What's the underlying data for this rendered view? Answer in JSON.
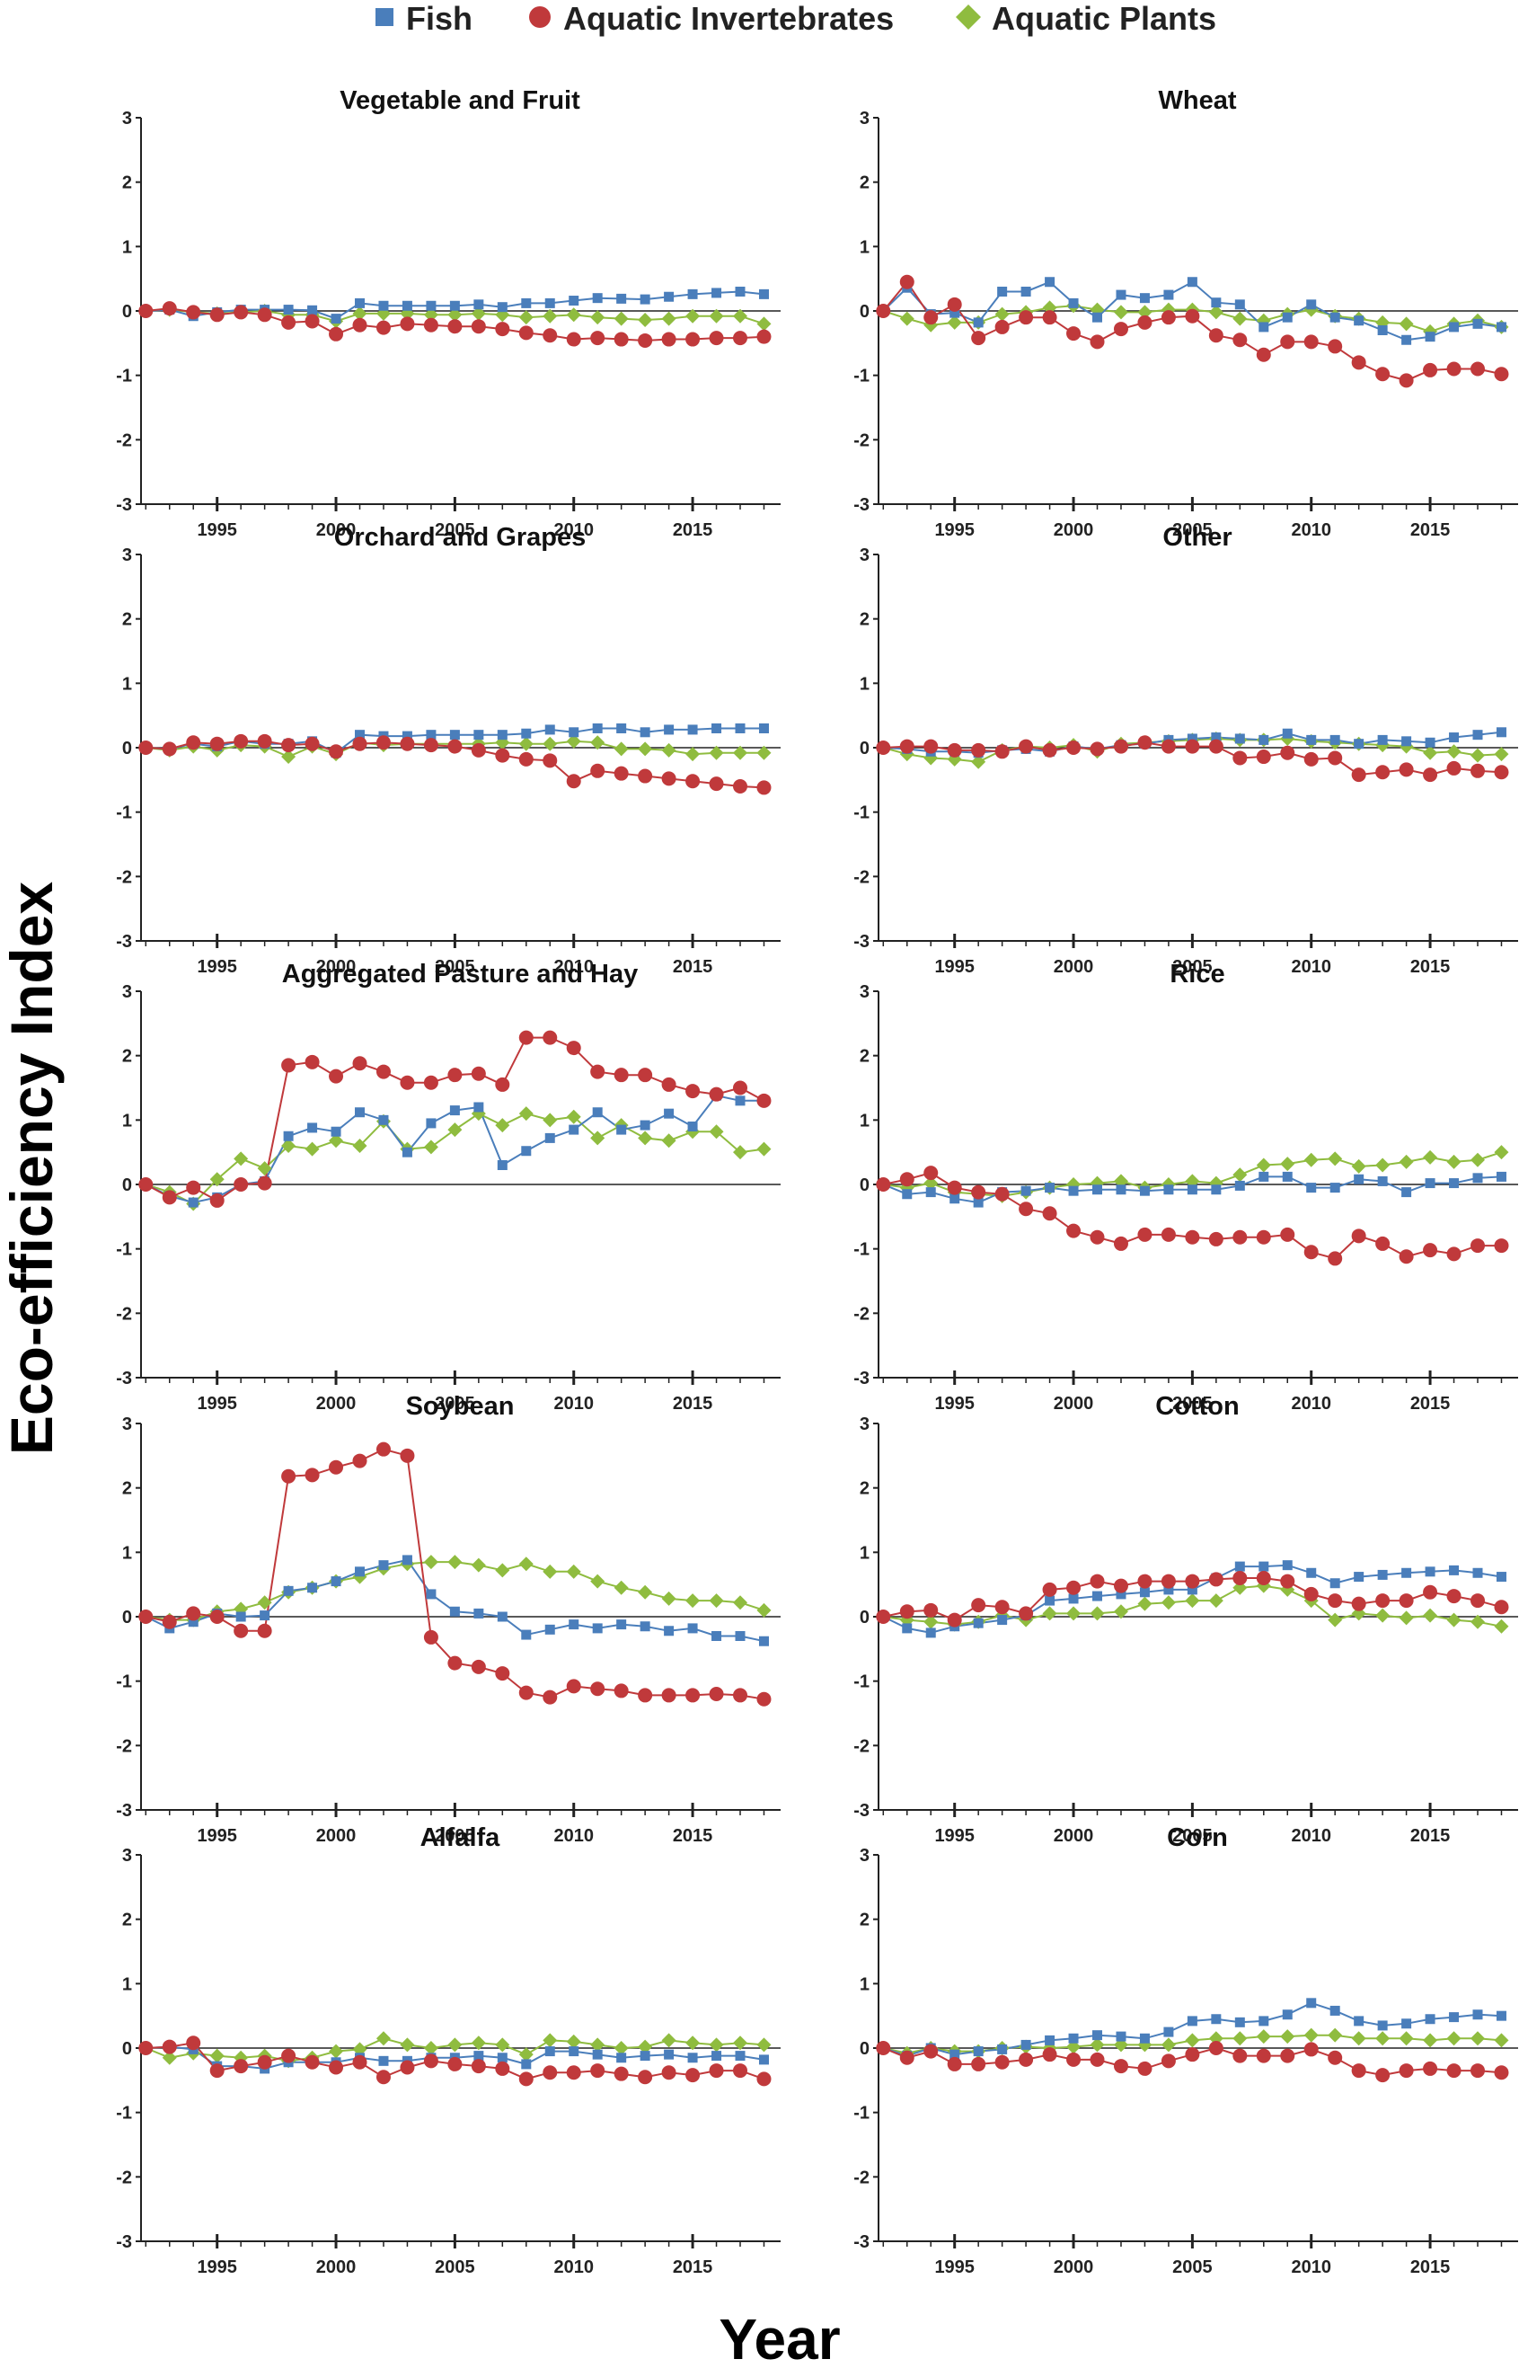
{
  "colors": {
    "fish": "#4a7ebb",
    "invertebrates": "#c0393b",
    "plants": "#8fbc3f"
  },
  "legend": {
    "fish": "Fish",
    "invertebrates": "Aquatic Invertebrates",
    "plants": "Aquatic Plants"
  },
  "axes": {
    "ylabel": "Eco-efficiency Index",
    "xlabel": "Year",
    "y_ticks": [
      "3",
      "2",
      "1",
      "0",
      "-1",
      "-2",
      "-3"
    ],
    "x_ticks": [
      "1995",
      "2000",
      "2005",
      "2010",
      "2015"
    ]
  },
  "chart_data": {
    "type": "line",
    "x": [
      1992,
      1993,
      1994,
      1995,
      1996,
      1997,
      1998,
      1999,
      2000,
      2001,
      2002,
      2003,
      2004,
      2005,
      2006,
      2007,
      2008,
      2009,
      2010,
      2011,
      2012,
      2013,
      2014,
      2015,
      2016,
      2017,
      2018
    ],
    "xlim": [
      1991.8,
      2018.7
    ],
    "ylim": [
      -3,
      3
    ],
    "panels": [
      {
        "title": "Vegetable and Fruit",
        "fish": [
          0,
          0.02,
          -0.08,
          -0.02,
          0.02,
          0.02,
          0.02,
          0.01,
          -0.12,
          0.12,
          0.08,
          0.08,
          0.08,
          0.08,
          0.1,
          0.06,
          0.12,
          0.12,
          0.16,
          0.2,
          0.19,
          0.18,
          0.22,
          0.26,
          0.28,
          0.3,
          0.26
        ],
        "invertebrates": [
          0,
          0.04,
          -0.02,
          -0.06,
          -0.02,
          -0.06,
          -0.18,
          -0.16,
          -0.36,
          -0.22,
          -0.26,
          -0.2,
          -0.22,
          -0.24,
          -0.24,
          -0.28,
          -0.34,
          -0.38,
          -0.44,
          -0.42,
          -0.44,
          -0.46,
          -0.44,
          -0.44,
          -0.42,
          -0.42,
          -0.4
        ],
        "plants": [
          0,
          0.02,
          -0.02,
          -0.04,
          -0.02,
          0,
          -0.06,
          -0.06,
          -0.16,
          -0.04,
          -0.04,
          -0.04,
          -0.06,
          -0.06,
          -0.04,
          -0.06,
          -0.1,
          -0.08,
          -0.06,
          -0.1,
          -0.12,
          -0.14,
          -0.12,
          -0.08,
          -0.08,
          -0.08,
          -0.2
        ]
      },
      {
        "title": "Wheat",
        "fish": [
          0,
          0.36,
          -0.05,
          -0.03,
          -0.18,
          0.3,
          0.3,
          0.45,
          0.12,
          -0.1,
          0.25,
          0.2,
          0.25,
          0.45,
          0.13,
          0.1,
          -0.25,
          -0.1,
          0.1,
          -0.1,
          -0.15,
          -0.3,
          -0.45,
          -0.4,
          -0.25,
          -0.2,
          -0.25
        ],
        "invertebrates": [
          0,
          0.45,
          -0.1,
          0.1,
          -0.42,
          -0.25,
          -0.1,
          -0.1,
          -0.35,
          -0.48,
          -0.28,
          -0.18,
          -0.1,
          -0.08,
          -0.38,
          -0.45,
          -0.68,
          -0.48,
          -0.48,
          -0.55,
          -0.8,
          -0.98,
          -1.08,
          -0.92,
          -0.9,
          -0.9,
          -0.98
        ],
        "plants": [
          0,
          -0.12,
          -0.22,
          -0.18,
          -0.18,
          -0.05,
          -0.02,
          0.05,
          0.08,
          0.02,
          -0.02,
          -0.02,
          0.02,
          0.02,
          -0.02,
          -0.12,
          -0.15,
          -0.05,
          0.02,
          -0.08,
          -0.12,
          -0.18,
          -0.2,
          -0.32,
          -0.2,
          -0.15,
          -0.25
        ]
      },
      {
        "title": "Orchard and Grapes",
        "fish": [
          0,
          -0.02,
          0.06,
          0.02,
          0.1,
          0.06,
          0.06,
          0.1,
          -0.08,
          0.2,
          0.18,
          0.18,
          0.2,
          0.2,
          0.2,
          0.2,
          0.22,
          0.28,
          0.24,
          0.3,
          0.3,
          0.24,
          0.28,
          0.28,
          0.3,
          0.3,
          0.3
        ],
        "invertebrates": [
          0,
          -0.02,
          0.08,
          0.06,
          0.1,
          0.1,
          0.04,
          0.06,
          -0.06,
          0.06,
          0.08,
          0.06,
          0.04,
          0.02,
          -0.04,
          -0.12,
          -0.18,
          -0.2,
          -0.52,
          -0.36,
          -0.4,
          -0.44,
          -0.48,
          -0.52,
          -0.56,
          -0.6,
          -0.62
        ],
        "plants": [
          0,
          -0.04,
          0.02,
          -0.04,
          0.04,
          0.02,
          -0.14,
          0.02,
          -0.1,
          0.08,
          0.04,
          0.06,
          0.06,
          0.06,
          0.06,
          0.08,
          0.06,
          0.06,
          0.1,
          0.08,
          -0.02,
          -0.02,
          -0.04,
          -0.1,
          -0.08,
          -0.08,
          -0.08
        ]
      },
      {
        "title": "Other",
        "fish": [
          0,
          -0.02,
          -0.06,
          -0.06,
          -0.08,
          -0.04,
          -0.02,
          -0.06,
          0.02,
          -0.02,
          0.04,
          0.06,
          0.12,
          0.14,
          0.16,
          0.14,
          0.12,
          0.22,
          0.12,
          0.12,
          0.06,
          0.12,
          0.1,
          0.08,
          0.16,
          0.2,
          0.24
        ],
        "invertebrates": [
          0,
          0.02,
          0.02,
          -0.04,
          -0.04,
          -0.06,
          0.02,
          -0.04,
          0,
          -0.02,
          0.02,
          0.08,
          0.02,
          0.02,
          0.02,
          -0.16,
          -0.14,
          -0.08,
          -0.18,
          -0.16,
          -0.42,
          -0.38,
          -0.34,
          -0.42,
          -0.32,
          -0.36,
          -0.38
        ],
        "plants": [
          0,
          -0.1,
          -0.16,
          -0.18,
          -0.22,
          -0.04,
          0.02,
          0,
          0.04,
          -0.06,
          0.06,
          0.08,
          0.1,
          0.12,
          0.14,
          0.12,
          0.12,
          0.14,
          0.1,
          0.08,
          0.06,
          0.04,
          0.02,
          -0.08,
          -0.06,
          -0.12,
          -0.1
        ]
      },
      {
        "title": "Aggregated Pasture and Hay",
        "fish": [
          0,
          -0.18,
          -0.28,
          -0.2,
          0,
          0.05,
          0.75,
          0.88,
          0.82,
          1.12,
          1.0,
          0.5,
          0.95,
          1.15,
          1.2,
          0.3,
          0.52,
          0.72,
          0.85,
          1.12,
          0.85,
          0.92,
          1.1,
          0.9,
          1.38,
          1.3,
          1.3
        ],
        "invertebrates": [
          0,
          -0.2,
          -0.05,
          -0.25,
          0,
          0.02,
          1.85,
          1.9,
          1.68,
          1.88,
          1.75,
          1.58,
          1.58,
          1.7,
          1.72,
          1.55,
          2.28,
          2.28,
          2.12,
          1.75,
          1.7,
          1.7,
          1.55,
          1.45,
          1.4,
          1.5,
          1.3
        ],
        "plants": [
          0,
          -0.12,
          -0.3,
          0.08,
          0.4,
          0.25,
          0.6,
          0.55,
          0.68,
          0.6,
          0.98,
          0.55,
          0.58,
          0.85,
          1.1,
          0.92,
          1.1,
          1.0,
          1.05,
          0.72,
          0.92,
          0.72,
          0.68,
          0.82,
          0.82,
          0.5,
          0.55
        ]
      },
      {
        "title": "Rice",
        "fish": [
          0,
          -0.15,
          -0.12,
          -0.22,
          -0.28,
          -0.12,
          -0.1,
          -0.05,
          -0.1,
          -0.08,
          -0.08,
          -0.1,
          -0.08,
          -0.08,
          -0.08,
          -0.02,
          0.12,
          0.12,
          -0.05,
          -0.05,
          0.08,
          0.05,
          -0.12,
          0.02,
          0.02,
          0.1,
          0.12
        ],
        "invertebrates": [
          0,
          0.08,
          0.18,
          -0.05,
          -0.12,
          -0.15,
          -0.38,
          -0.45,
          -0.72,
          -0.82,
          -0.92,
          -0.78,
          -0.78,
          -0.82,
          -0.85,
          -0.82,
          -0.82,
          -0.78,
          -1.05,
          -1.15,
          -0.8,
          -0.92,
          -1.12,
          -1.02,
          -1.08,
          -0.95,
          -0.95
        ],
        "plants": [
          0,
          -0.05,
          0.02,
          -0.12,
          -0.15,
          -0.18,
          -0.12,
          -0.05,
          0,
          0.02,
          0.05,
          -0.05,
          0,
          0.05,
          0.02,
          0.15,
          0.3,
          0.32,
          0.38,
          0.4,
          0.28,
          0.3,
          0.35,
          0.42,
          0.35,
          0.38,
          0.5
        ]
      },
      {
        "title": "Soybean",
        "fish": [
          0,
          -0.18,
          -0.08,
          0.05,
          0,
          0.02,
          0.4,
          0.45,
          0.55,
          0.7,
          0.8,
          0.88,
          0.35,
          0.08,
          0.05,
          0,
          -0.28,
          -0.2,
          -0.12,
          -0.18,
          -0.12,
          -0.15,
          -0.22,
          -0.18,
          -0.3,
          -0.3,
          -0.38
        ],
        "invertebrates": [
          0,
          -0.08,
          0.05,
          0,
          -0.22,
          -0.22,
          2.18,
          2.2,
          2.32,
          2.42,
          2.6,
          2.5,
          -0.32,
          -0.72,
          -0.78,
          -0.88,
          -1.18,
          -1.25,
          -1.08,
          -1.12,
          -1.15,
          -1.22,
          -1.22,
          -1.22,
          -1.2,
          -1.22,
          -1.28
        ],
        "plants": [
          0,
          -0.05,
          -0.05,
          0.08,
          0.12,
          0.22,
          0.38,
          0.45,
          0.55,
          0.62,
          0.75,
          0.82,
          0.85,
          0.85,
          0.8,
          0.72,
          0.82,
          0.7,
          0.7,
          0.55,
          0.45,
          0.38,
          0.28,
          0.25,
          0.25,
          0.22,
          0.1
        ]
      },
      {
        "title": "Cotton",
        "fish": [
          0,
          -0.18,
          -0.25,
          -0.15,
          -0.1,
          -0.05,
          0.02,
          0.25,
          0.28,
          0.32,
          0.35,
          0.38,
          0.42,
          0.42,
          0.6,
          0.78,
          0.78,
          0.8,
          0.68,
          0.52,
          0.62,
          0.65,
          0.68,
          0.7,
          0.72,
          0.68,
          0.62
        ],
        "invertebrates": [
          0,
          0.08,
          0.1,
          -0.05,
          0.18,
          0.15,
          0.05,
          0.42,
          0.45,
          0.55,
          0.48,
          0.55,
          0.55,
          0.55,
          0.58,
          0.6,
          0.6,
          0.55,
          0.35,
          0.25,
          0.2,
          0.25,
          0.25,
          0.38,
          0.32,
          0.25,
          0.15
        ],
        "plants": [
          0,
          -0.05,
          -0.08,
          -0.12,
          -0.08,
          0.02,
          -0.05,
          0.05,
          0.05,
          0.05,
          0.08,
          0.2,
          0.22,
          0.25,
          0.25,
          0.45,
          0.48,
          0.42,
          0.25,
          -0.05,
          0.05,
          0.02,
          -0.02,
          0.02,
          -0.05,
          -0.08,
          -0.15
        ]
      },
      {
        "title": "Alfalfa",
        "fish": [
          0,
          0.02,
          -0.02,
          -0.28,
          -0.28,
          -0.32,
          -0.22,
          -0.22,
          -0.22,
          -0.15,
          -0.2,
          -0.2,
          -0.15,
          -0.15,
          -0.12,
          -0.15,
          -0.25,
          -0.05,
          -0.05,
          -0.1,
          -0.15,
          -0.12,
          -0.1,
          -0.15,
          -0.12,
          -0.12,
          -0.18
        ],
        "invertebrates": [
          0,
          0.02,
          0.08,
          -0.35,
          -0.28,
          -0.22,
          -0.12,
          -0.22,
          -0.3,
          -0.22,
          -0.45,
          -0.3,
          -0.2,
          -0.25,
          -0.28,
          -0.32,
          -0.48,
          -0.38,
          -0.38,
          -0.35,
          -0.4,
          -0.45,
          -0.38,
          -0.42,
          -0.35,
          -0.35,
          -0.48
        ],
        "plants": [
          0,
          -0.15,
          -0.08,
          -0.12,
          -0.15,
          -0.12,
          -0.2,
          -0.15,
          -0.05,
          -0.02,
          0.15,
          0.05,
          0,
          0.05,
          0.08,
          0.05,
          -0.1,
          0.12,
          0.1,
          0.05,
          0,
          0.02,
          0.12,
          0.08,
          0.05,
          0.08,
          0.05
        ]
      },
      {
        "title": "Corn",
        "fish": [
          0,
          -0.12,
          0,
          -0.1,
          -0.05,
          -0.02,
          0.05,
          0.12,
          0.15,
          0.2,
          0.18,
          0.15,
          0.25,
          0.42,
          0.45,
          0.4,
          0.42,
          0.52,
          0.7,
          0.58,
          0.42,
          0.35,
          0.38,
          0.45,
          0.48,
          0.52,
          0.5
        ],
        "invertebrates": [
          0,
          -0.15,
          -0.05,
          -0.25,
          -0.25,
          -0.22,
          -0.18,
          -0.1,
          -0.18,
          -0.18,
          -0.28,
          -0.32,
          -0.2,
          -0.1,
          0,
          -0.12,
          -0.12,
          -0.12,
          -0.02,
          -0.15,
          -0.35,
          -0.42,
          -0.35,
          -0.32,
          -0.35,
          -0.35,
          -0.38
        ],
        "plants": [
          0,
          -0.08,
          0,
          -0.05,
          -0.05,
          0,
          0.02,
          0,
          0.02,
          0.05,
          0.05,
          0.05,
          0.05,
          0.12,
          0.15,
          0.15,
          0.18,
          0.18,
          0.2,
          0.2,
          0.15,
          0.15,
          0.15,
          0.12,
          0.15,
          0.15,
          0.12
        ]
      }
    ]
  }
}
